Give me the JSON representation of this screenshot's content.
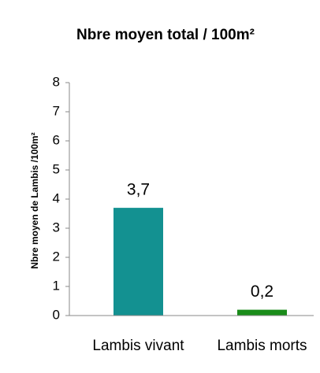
{
  "chart_data": {
    "type": "bar",
    "title": "Nbre moyen total / 100m²",
    "y_label": "Nbre moyen de Lambis /100m²",
    "categories": [
      "Lambis vivant",
      "Lambis morts"
    ],
    "values": [
      3.7,
      0.2
    ],
    "value_labels": [
      "3,7",
      "0,2"
    ],
    "colors": [
      "#139191",
      "#1a8c1a"
    ],
    "ylim": [
      0,
      8
    ],
    "yticks": [
      0,
      1,
      2,
      3,
      4,
      5,
      6,
      7,
      8
    ]
  }
}
